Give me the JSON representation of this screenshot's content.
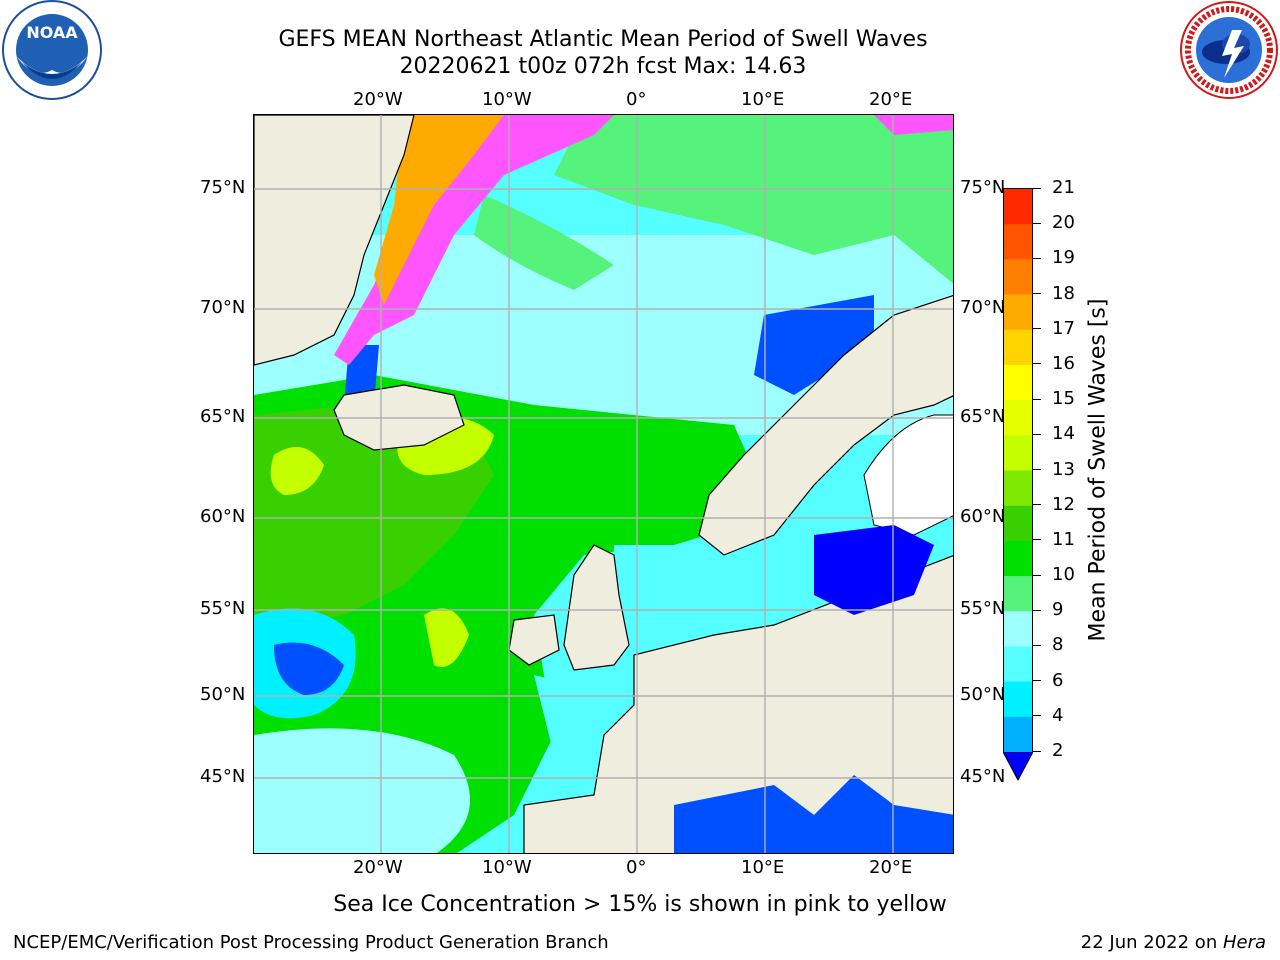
{
  "title": {
    "line1": "GEFS MEAN Northeast Atlantic Mean Period of Swell Waves",
    "line2": "20220621 t00z 072h fcst   Max: 14.63"
  },
  "logos": {
    "left": {
      "name": "noaa-logo",
      "text": "NOAA",
      "ring_text": "NATIONAL OCEANIC AND ATMOSPHERIC ADMINISTRATION · U.S. DEPARTMENT OF COMMERCE"
    },
    "right": {
      "name": "nws-logo",
      "ring_text": "NATIONAL WEATHER SERVICE"
    }
  },
  "map": {
    "lon_labels": [
      "20°W",
      "10°W",
      "0°",
      "10°E",
      "20°E"
    ],
    "lat_labels": [
      "75°N",
      "70°N",
      "65°N",
      "60°N",
      "55°N",
      "50°N",
      "45°N"
    ],
    "land_color": "#eeedde",
    "grid_color": "#b0b0b0",
    "ice_note": "Sea Ice Concentration > 15% is shown in pink to yellow"
  },
  "colorbar": {
    "label": "Mean Period of Swell Waves [s]",
    "ticks": [
      "21",
      "20",
      "19",
      "18",
      "17",
      "16",
      "15",
      "14",
      "13",
      "12",
      "11",
      "10",
      "9",
      "8",
      "6",
      "4",
      "2"
    ],
    "colors": [
      "#ff0000",
      "#ff2a00",
      "#ff5500",
      "#ff7f00",
      "#ffaa00",
      "#ffd400",
      "#ffff00",
      "#e5ff00",
      "#c4ff00",
      "#7fe800",
      "#38d000",
      "#00e000",
      "#55f27c",
      "#9effff",
      "#55ffff",
      "#00f0ff",
      "#00b0ff",
      "#0050ff"
    ],
    "under_color": "#0000ff"
  },
  "footer": {
    "left": "NCEP/EMC/Verification Post Processing Product Generation Branch",
    "right_date": "22 Jun 2022 on ",
    "right_host": "Hera"
  }
}
